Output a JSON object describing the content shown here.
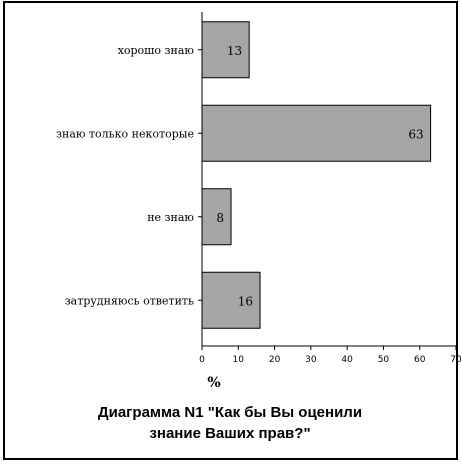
{
  "chart_data": {
    "type": "bar",
    "orientation": "horizontal",
    "categories": [
      "хорошо знаю",
      "знаю только некоторые",
      "не знаю",
      "затрудняюсь ответить"
    ],
    "values": [
      13,
      63,
      8,
      16
    ],
    "value_labels": [
      "13",
      "63",
      "8",
      "16"
    ],
    "xlabel": "%",
    "xlim": [
      0,
      70
    ],
    "xticks": [
      "0",
      "10",
      "20",
      "30",
      "40",
      "50",
      "60",
      "70"
    ],
    "grid": false,
    "bar_color": "#a6a6a6",
    "caption_lines": [
      "Диаграмма N1 \"Как бы Вы оценили",
      "знание Ваших прав?\""
    ]
  }
}
